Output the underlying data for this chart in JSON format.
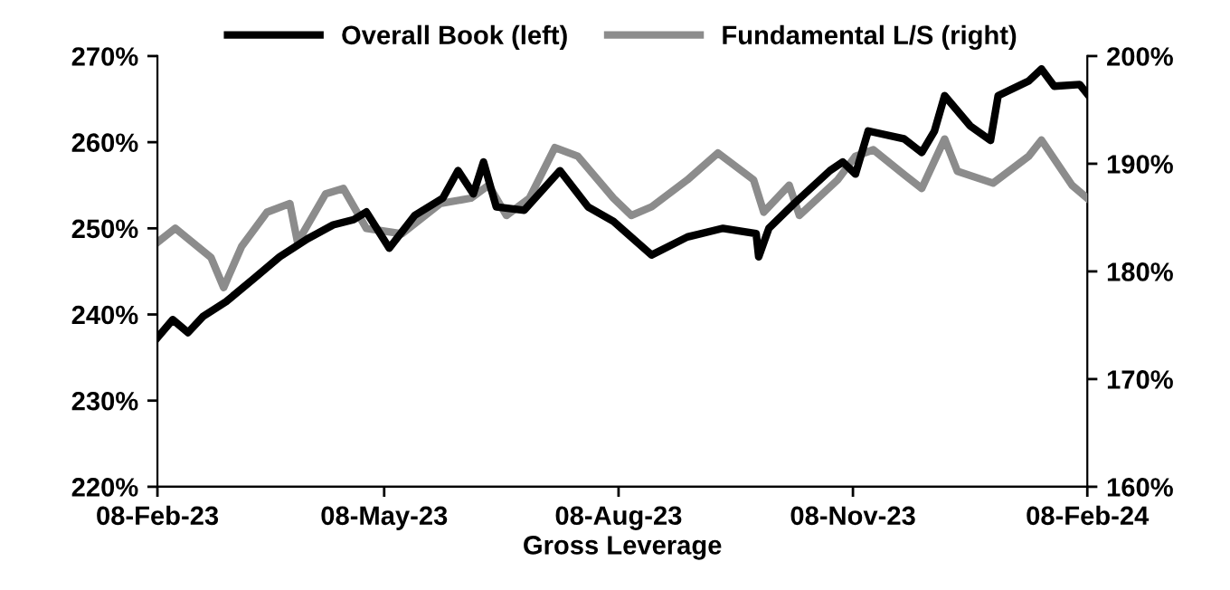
{
  "chart_data": {
    "type": "line",
    "xlabel": "Gross Leverage",
    "legend": "top",
    "grid": false,
    "marker": "none",
    "line_style": "solid",
    "xlim": [
      "2023-02-08",
      "2024-02-08"
    ],
    "xticks": [
      {
        "value": "2023-02-08",
        "label": "08-Feb-23"
      },
      {
        "value": "2023-05-08",
        "label": "08-May-23"
      },
      {
        "value": "2023-08-08",
        "label": "08-Aug-23"
      },
      {
        "value": "2023-11-08",
        "label": "08-Nov-23"
      },
      {
        "value": "2024-02-08",
        "label": "08-Feb-24"
      }
    ],
    "ylim": [
      220,
      270
    ],
    "yticks": [
      {
        "value": 220,
        "label": "220%"
      },
      {
        "value": 230,
        "label": "230%"
      },
      {
        "value": 240,
        "label": "240%"
      },
      {
        "value": 250,
        "label": "250%"
      },
      {
        "value": 260,
        "label": "260%"
      },
      {
        "value": 270,
        "label": "270%"
      }
    ],
    "y2lim": [
      160,
      200
    ],
    "y2ticks": [
      {
        "value": 160,
        "label": "160%"
      },
      {
        "value": 170,
        "label": "170%"
      },
      {
        "value": 180,
        "label": "180%"
      },
      {
        "value": 190,
        "label": "190%"
      },
      {
        "value": 200,
        "label": "200%"
      }
    ],
    "series": [
      {
        "name": "Overall Book (left)",
        "color": "#000000",
        "x": [
          "2023-02-08",
          "2023-02-14",
          "2023-02-20",
          "2023-02-26",
          "2023-03-07",
          "2023-03-18",
          "2023-03-28",
          "2023-04-08",
          "2023-04-18",
          "2023-04-26",
          "2023-05-01",
          "2023-05-10",
          "2023-05-20",
          "2023-05-31",
          "2023-06-06",
          "2023-06-12",
          "2023-06-16",
          "2023-06-21",
          "2023-07-02",
          "2023-07-16",
          "2023-07-27",
          "2023-08-06",
          "2023-08-21",
          "2023-09-04",
          "2023-09-18",
          "2023-10-01",
          "2023-10-02",
          "2023-10-06",
          "2023-10-16",
          "2023-10-30",
          "2023-11-04",
          "2023-11-09",
          "2023-11-14",
          "2023-11-28",
          "2023-12-05",
          "2023-12-10",
          "2023-12-14",
          "2023-12-24",
          "2024-01-01",
          "2024-01-04",
          "2024-01-16",
          "2024-01-21",
          "2024-01-26",
          "2024-02-05",
          "2024-02-08"
        ],
        "values": [
          237.3,
          239.4,
          237.9,
          239.8,
          241.5,
          244.2,
          246.7,
          248.8,
          250.4,
          251.0,
          251.9,
          247.7,
          251.5,
          253.5,
          256.7,
          254.0,
          257.7,
          252.5,
          252.1,
          256.7,
          252.5,
          250.8,
          246.9,
          249.0,
          250.0,
          249.4,
          246.7,
          250.0,
          252.9,
          256.7,
          257.7,
          256.3,
          261.3,
          260.4,
          258.8,
          261.3,
          265.4,
          261.9,
          260.2,
          265.4,
          267.1,
          268.5,
          266.5,
          266.7,
          265.6
        ]
      },
      {
        "name": "Fundamental L/S (right)",
        "color": "#8c8c8c",
        "axis": "y2",
        "x": [
          "2023-02-08",
          "2023-02-15",
          "2023-03-01",
          "2023-03-06",
          "2023-03-13",
          "2023-03-23",
          "2023-04-01",
          "2023-04-04",
          "2023-04-15",
          "2023-04-22",
          "2023-05-01",
          "2023-05-15",
          "2023-05-30",
          "2023-06-11",
          "2023-06-18",
          "2023-06-25",
          "2023-07-04",
          "2023-07-14",
          "2023-07-23",
          "2023-08-06",
          "2023-08-13",
          "2023-08-21",
          "2023-09-04",
          "2023-09-16",
          "2023-09-30",
          "2023-10-04",
          "2023-10-14",
          "2023-10-18",
          "2023-11-02",
          "2023-11-09",
          "2023-11-16",
          "2023-11-28",
          "2023-12-05",
          "2023-12-14",
          "2023-12-19",
          "2024-01-02",
          "2024-01-16",
          "2024-01-21",
          "2024-02-02",
          "2024-02-08"
        ],
        "values": [
          182.7,
          184.0,
          181.3,
          178.5,
          182.3,
          185.5,
          186.3,
          182.7,
          187.2,
          187.7,
          184.0,
          183.5,
          186.3,
          186.8,
          188.0,
          185.2,
          186.8,
          191.5,
          190.7,
          186.8,
          185.2,
          186.0,
          188.5,
          191.0,
          188.5,
          185.5,
          188.0,
          185.2,
          188.5,
          190.7,
          191.3,
          189.0,
          187.7,
          192.3,
          189.3,
          188.2,
          190.7,
          192.2,
          188.0,
          186.8
        ]
      }
    ]
  }
}
